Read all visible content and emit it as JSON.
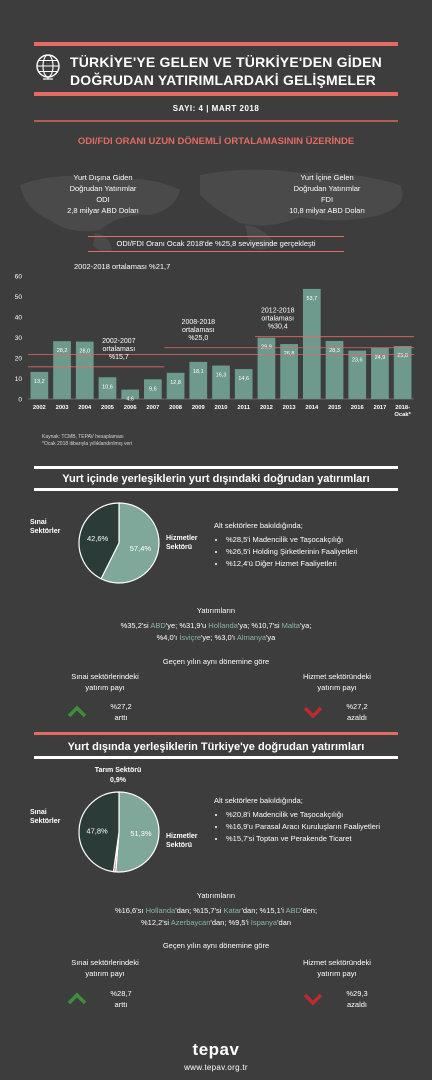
{
  "header": {
    "title_line1": "TÜRKİYE'YE GELEN VE TÜRKİYE'DEN GİDEN",
    "title_line2": "DOĞRUDAN YATIRIMLARDAKİ GELİŞMELER",
    "issue": "SAYI: 4 | MART 2018"
  },
  "section1": {
    "headline": "ODI/FDI ORANI UZUN DÖNEMLİ ORTALAMASININ ÜZERİNDE",
    "left": {
      "line1": "Yurt Dışına Giden",
      "line2": "Doğrudan Yatırımlar",
      "line3": "ODI",
      "line4": "2,8 milyar ABD Doları"
    },
    "right": {
      "line1": "Yurt İçine Gelen",
      "line2": "Doğrudan Yatırımlar",
      "line3": "FDI",
      "line4": "10,8 milyar ABD Doları"
    },
    "banner": "ODI/FDI Oranı Ocak 2018'de %25,8 seviyesinde gerçekleşti"
  },
  "chart_data": {
    "type": "bar",
    "categories": [
      "2002",
      "2003",
      "2004",
      "2005",
      "2006",
      "2007",
      "2008",
      "2009",
      "2010",
      "2011",
      "2012",
      "2013",
      "2014",
      "2015",
      "2016",
      "2017",
      "2018-Ocak*"
    ],
    "values": [
      13.2,
      28.2,
      28.0,
      10.6,
      4.6,
      9.6,
      12.8,
      18.1,
      16.3,
      14.6,
      29.9,
      26.8,
      53.7,
      28.3,
      23.6,
      24.9,
      25.8
    ],
    "value_labels": [
      "13,2",
      "28,2",
      "28,0",
      "10,6",
      "4,6",
      "9,6",
      "12,8",
      "18,1",
      "16,3",
      "14,6",
      "29,9",
      "26,8",
      "53,7",
      "28,3",
      "23,6",
      "24,9",
      "25,8"
    ],
    "ylim": [
      0,
      60
    ],
    "yticks": [
      "0",
      "10",
      "20",
      "30",
      "40",
      "50",
      "60"
    ],
    "averages": [
      {
        "label_lines": [
          "2002-2018 ortalaması %21,7"
        ],
        "value": 21.7,
        "from": 0,
        "to": 16
      },
      {
        "label_lines": [
          "2002-2007",
          "ortalaması",
          "%15,7"
        ],
        "value": 15.7,
        "from": 0,
        "to": 5
      },
      {
        "label_lines": [
          "2008-2018",
          "ortalaması",
          "%25,0"
        ],
        "value": 25.0,
        "from": 6,
        "to": 16
      },
      {
        "label_lines": [
          "2012-2018",
          "ortalaması",
          "%30,4"
        ],
        "value": 30.4,
        "from": 10,
        "to": 16
      }
    ],
    "bar_color": "#6e9a8e",
    "avg_color": "#e36b63",
    "source_lines": [
      "Kaynak: TCMB, TEPAV hesaplaması",
      "*Ocak 2018 itibarıyla yıllıklandırılmış veri"
    ]
  },
  "section2": {
    "title": "Yurt içinde yerleşiklerin yurt dışındaki doğrudan yatırımları",
    "pie": {
      "slices": [
        {
          "label": "Hizmetler Sektörü",
          "value": 57.4,
          "value_label": "57,4%",
          "color": "#7fa79a"
        },
        {
          "label": "Sınai Sektörler",
          "value": 42.6,
          "value_label": "42,6%",
          "color": "#2b3b37"
        }
      ],
      "label_left_1": "Sınai",
      "label_left_2": "Sektörler",
      "label_right_1": "Hizmetler",
      "label_right_2": "Sektörü"
    },
    "sub_title": "Alt sektörlere bakıldığında;",
    "sub_items": [
      "%28,5'i Madencilik ve Taşocakçılığı",
      "%26,5'i Holding Şirketlerinin Faaliyetleri",
      "%12,4'ü Diğer Hizmet Faaliyetleri"
    ],
    "investments_title": "Yatırımların",
    "inv_line1": [
      {
        "t": "%35,2'si "
      },
      {
        "t": "ABD",
        "h": true
      },
      {
        "t": "'ye; %31,9'u "
      },
      {
        "t": "Hollanda",
        "h": true
      },
      {
        "t": "'ya; %10,7'si "
      },
      {
        "t": "Malta",
        "h": true
      },
      {
        "t": "'ya;"
      }
    ],
    "inv_line2": [
      {
        "t": "%4,0'ı "
      },
      {
        "t": "İsviçre",
        "h": true
      },
      {
        "t": "'ye; %3,0'ı "
      },
      {
        "t": "Almanya",
        "h": true
      },
      {
        "t": "'ya"
      }
    ],
    "period": "Geçen yılın aynı dönemine göre",
    "left_label1": "Sınai sektörlerindeki",
    "left_label2": "yatırım payı",
    "left_value": "%27,2",
    "left_dir": "arttı",
    "right_label1": "Hizmet sektöründeki",
    "right_label2": "yatırım payı",
    "right_value": "%27,2",
    "right_dir": "azaldı"
  },
  "section3": {
    "title": "Yurt dışında yerleşiklerin Türkiye'ye doğrudan yatırımları",
    "pie": {
      "slices": [
        {
          "label": "Hizmetler Sektörü",
          "value": 51.3,
          "value_label": "51,3%",
          "color": "#7fa79a"
        },
        {
          "label": "Tarım Sektörü",
          "value": 0.9,
          "value_label": "0,9%",
          "color": "#e36b63"
        },
        {
          "label": "Sınai Sektörler",
          "value": 47.8,
          "value_label": "47,8%",
          "color": "#2b3b37"
        }
      ],
      "label_top": "Tarım Sektörü",
      "label_top_val": "0,9%",
      "label_left_1": "Sınai",
      "label_left_2": "Sektörler",
      "label_right_1": "Hizmetler",
      "label_right_2": "Sektörü"
    },
    "sub_title": "Alt sektörlere bakıldığında;",
    "sub_items": [
      "%20,8'i Madencilik ve Taşocakçılığı",
      "%16,9'u Parasal Aracı Kuruluşların Faaliyetleri",
      "%15,7'si Toptan ve Perakende Ticaret"
    ],
    "investments_title": "Yatırımların",
    "inv_line1": [
      {
        "t": "%16,6'sı "
      },
      {
        "t": "Hollanda",
        "h": true
      },
      {
        "t": "'dan; %15,7'si "
      },
      {
        "t": "Katar",
        "h": true
      },
      {
        "t": "'dan; %15,1'i "
      },
      {
        "t": "ABD",
        "h": true
      },
      {
        "t": "'den;"
      }
    ],
    "inv_line2": [
      {
        "t": "%12,2'si "
      },
      {
        "t": "Azerbaycan",
        "h": true
      },
      {
        "t": "'dan; %9,5'i "
      },
      {
        "t": "İspanya",
        "h": true
      },
      {
        "t": "'dan"
      }
    ],
    "period": "Geçen yılın aynı dönemine göre",
    "left_label1": "Sınai sektörlerindeki",
    "left_label2": "yatırım payı",
    "left_value": "%28,7",
    "left_dir": "arttı",
    "right_label1": "Hizmet sektöründeki",
    "right_label2": "yatırım payı",
    "right_value": "%29,3",
    "right_dir": "azaldı"
  },
  "footer": {
    "logo": "tepav",
    "url": "www.tepav.org.tr"
  },
  "icons": {
    "globe": "globe-icon",
    "up": "arrow-up-icon",
    "down": "arrow-down-icon"
  },
  "colors": {
    "accent": "#e36b63",
    "bar": "#6e9a8e",
    "up": "#3e8f3a",
    "down": "#c0292d",
    "background": "#3d3d3d"
  }
}
